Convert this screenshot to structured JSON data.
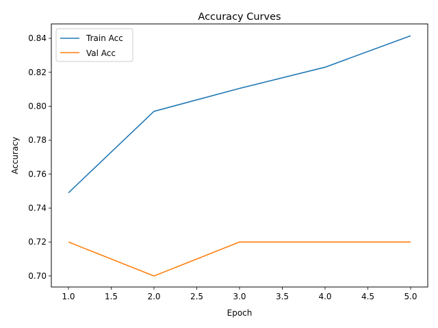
{
  "chart_data": {
    "type": "line",
    "title": "Accuracy Curves",
    "xlabel": "Epoch",
    "ylabel": "Accuracy",
    "x": [
      1,
      2,
      3,
      4,
      5
    ],
    "xlim": [
      0.8,
      5.2
    ],
    "ylim": [
      0.6935,
      0.8485
    ],
    "xticks": [
      "1.0",
      "1.5",
      "2.0",
      "2.5",
      "3.0",
      "3.5",
      "4.0",
      "4.5",
      "5.0"
    ],
    "yticks": [
      "0.70",
      "0.72",
      "0.74",
      "0.76",
      "0.78",
      "0.80",
      "0.82",
      "0.84"
    ],
    "grid": false,
    "legend_position": "upper-left",
    "series": [
      {
        "name": "Train Acc",
        "color": "#1f77b4",
        "values": [
          0.749,
          0.797,
          0.8105,
          0.823,
          0.8415
        ]
      },
      {
        "name": "Val Acc",
        "color": "#ff7f0e",
        "values": [
          0.72,
          0.7,
          0.72,
          0.72,
          0.72
        ]
      }
    ]
  }
}
